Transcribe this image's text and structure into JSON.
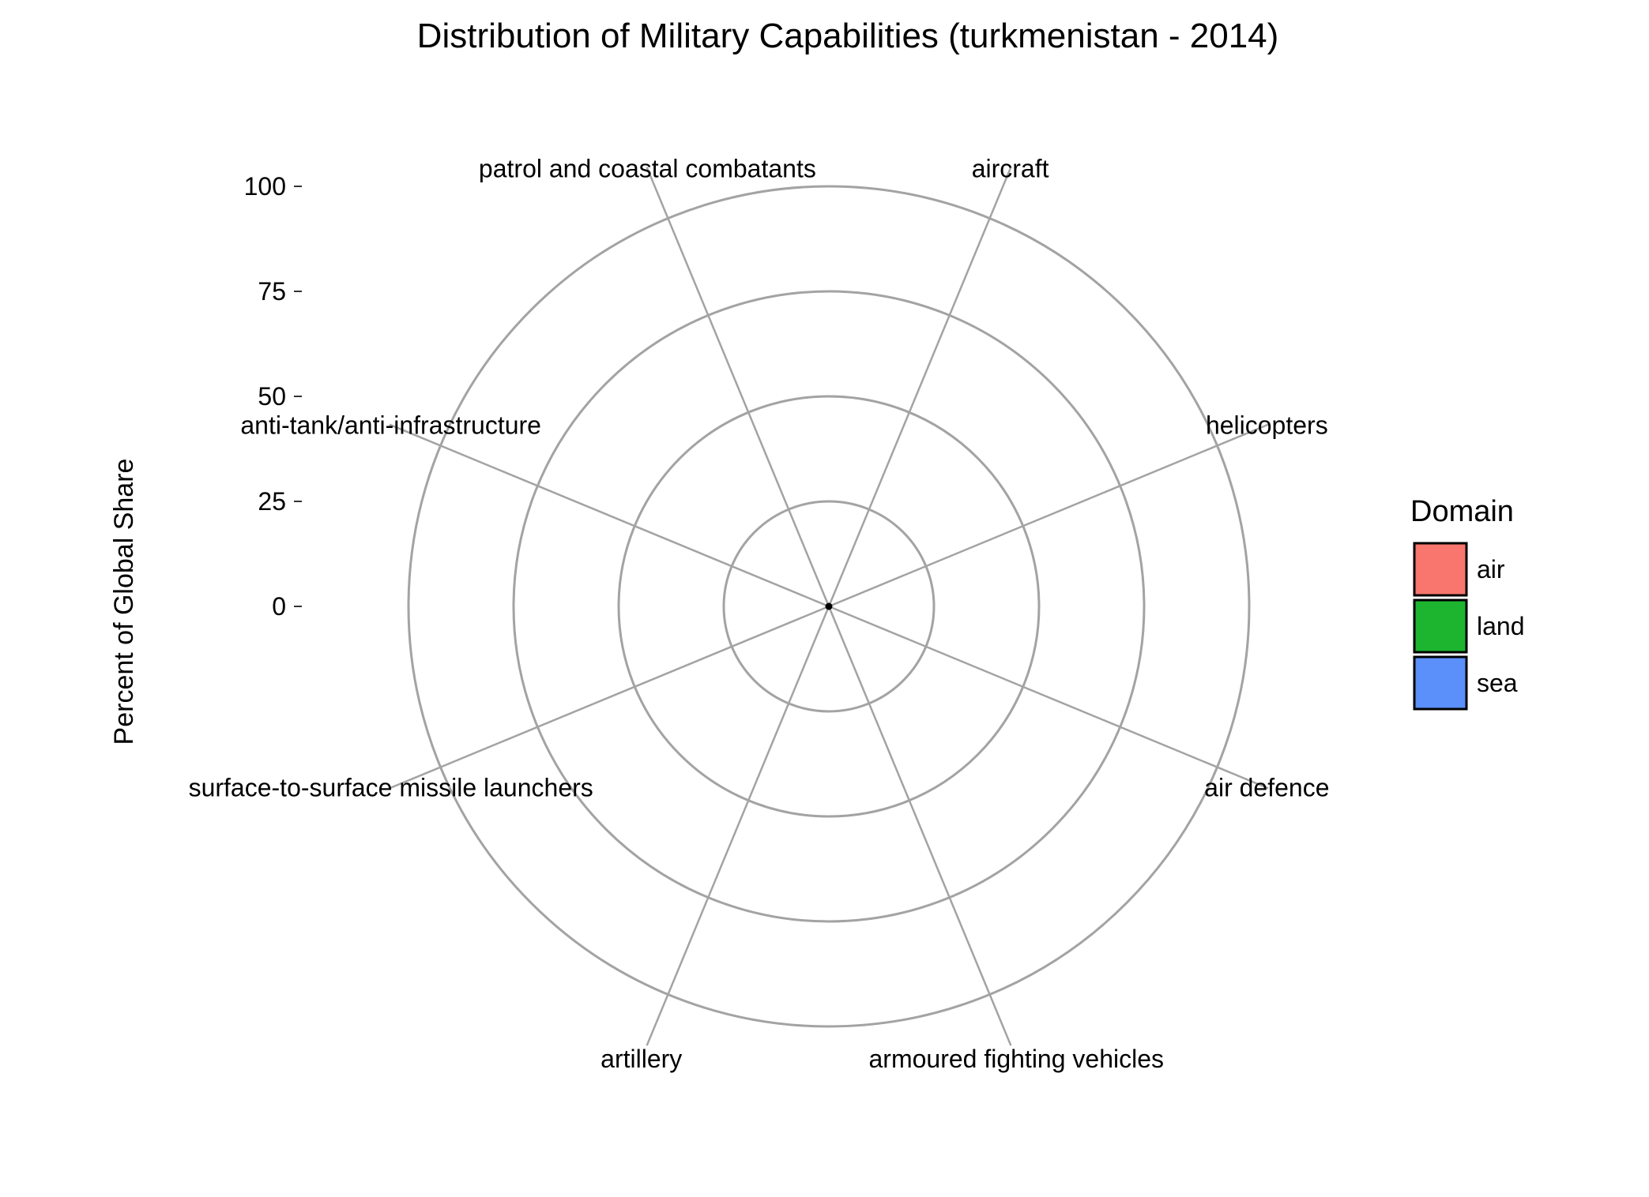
{
  "chart_data": {
    "type": "polar-bar",
    "title": "Distribution of Military Capabilities (turkmenistan - 2014)",
    "ylabel": "Percent of Global Share",
    "ylim": [
      0,
      100
    ],
    "yticks": [
      "0",
      "25",
      "50",
      "75",
      "100"
    ],
    "ytick_values": [
      0,
      25,
      50,
      75,
      100
    ],
    "categories": [
      "aircraft",
      "helicopters",
      "air defence",
      "armoured fighting vehicles",
      "artillery",
      "surface-to-surface missile launchers",
      "anti-tank/anti-infrastructure",
      "patrol and coastal combatants"
    ],
    "domains": [
      "air",
      "air",
      "air",
      "land",
      "land",
      "land",
      "land",
      "sea"
    ],
    "values": [
      0,
      0,
      0,
      0,
      0,
      0,
      0,
      0
    ],
    "legend": {
      "title": "Domain",
      "position": "right",
      "entries": [
        {
          "label": "air",
          "color": "#F8766D"
        },
        {
          "label": "land",
          "color": "#1DB52F"
        },
        {
          "label": "sea",
          "color": "#5B8FF9"
        }
      ]
    },
    "grid": true
  }
}
